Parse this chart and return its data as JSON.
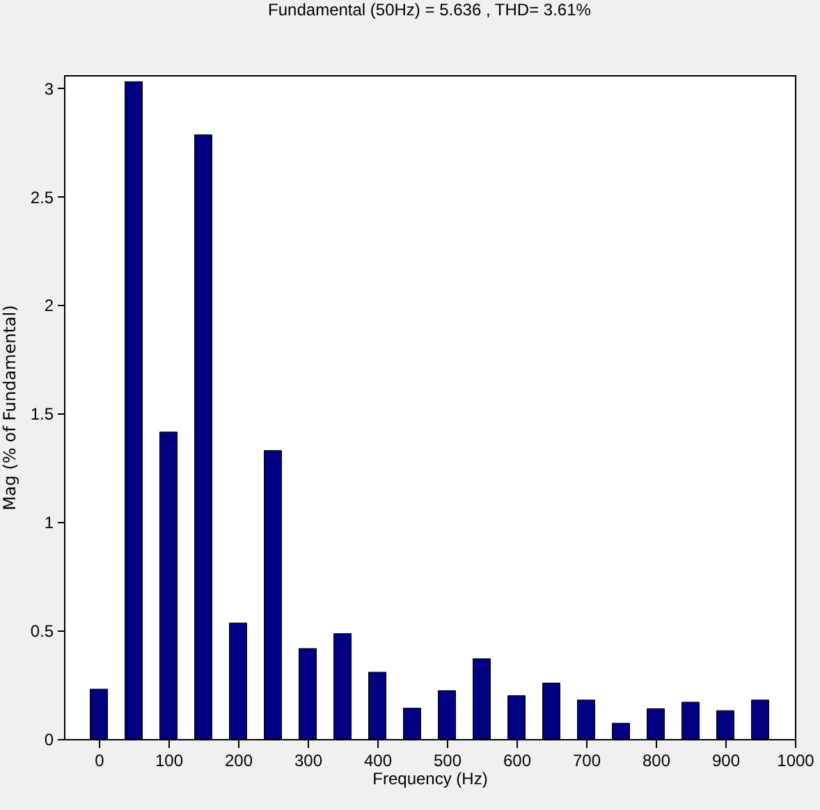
{
  "chart_data": {
    "type": "bar",
    "title": "Fundamental (50Hz) = 5.636 , THD= 3.61%",
    "xlabel": "Frequency (Hz)",
    "ylabel": "Mag (% of Fundamental)",
    "x": [
      0,
      50,
      100,
      150,
      200,
      250,
      300,
      350,
      400,
      450,
      500,
      550,
      600,
      650,
      700,
      750,
      800,
      850,
      900,
      950
    ],
    "values": [
      0.23,
      3.03,
      1.415,
      2.785,
      0.535,
      1.33,
      0.417,
      0.486,
      0.308,
      0.142,
      0.223,
      0.37,
      0.2,
      0.258,
      0.18,
      0.073,
      0.14,
      0.17,
      0.131,
      0.18
    ],
    "color": "#000080",
    "xlim": [
      -50,
      1000
    ],
    "xticks": [
      0,
      100,
      200,
      300,
      400,
      500,
      600,
      700,
      800,
      900,
      1000
    ],
    "ylim": [
      0,
      3.06
    ],
    "yticks": [
      0,
      0.5,
      1,
      1.5,
      2,
      2.5,
      3
    ],
    "grid": false
  }
}
